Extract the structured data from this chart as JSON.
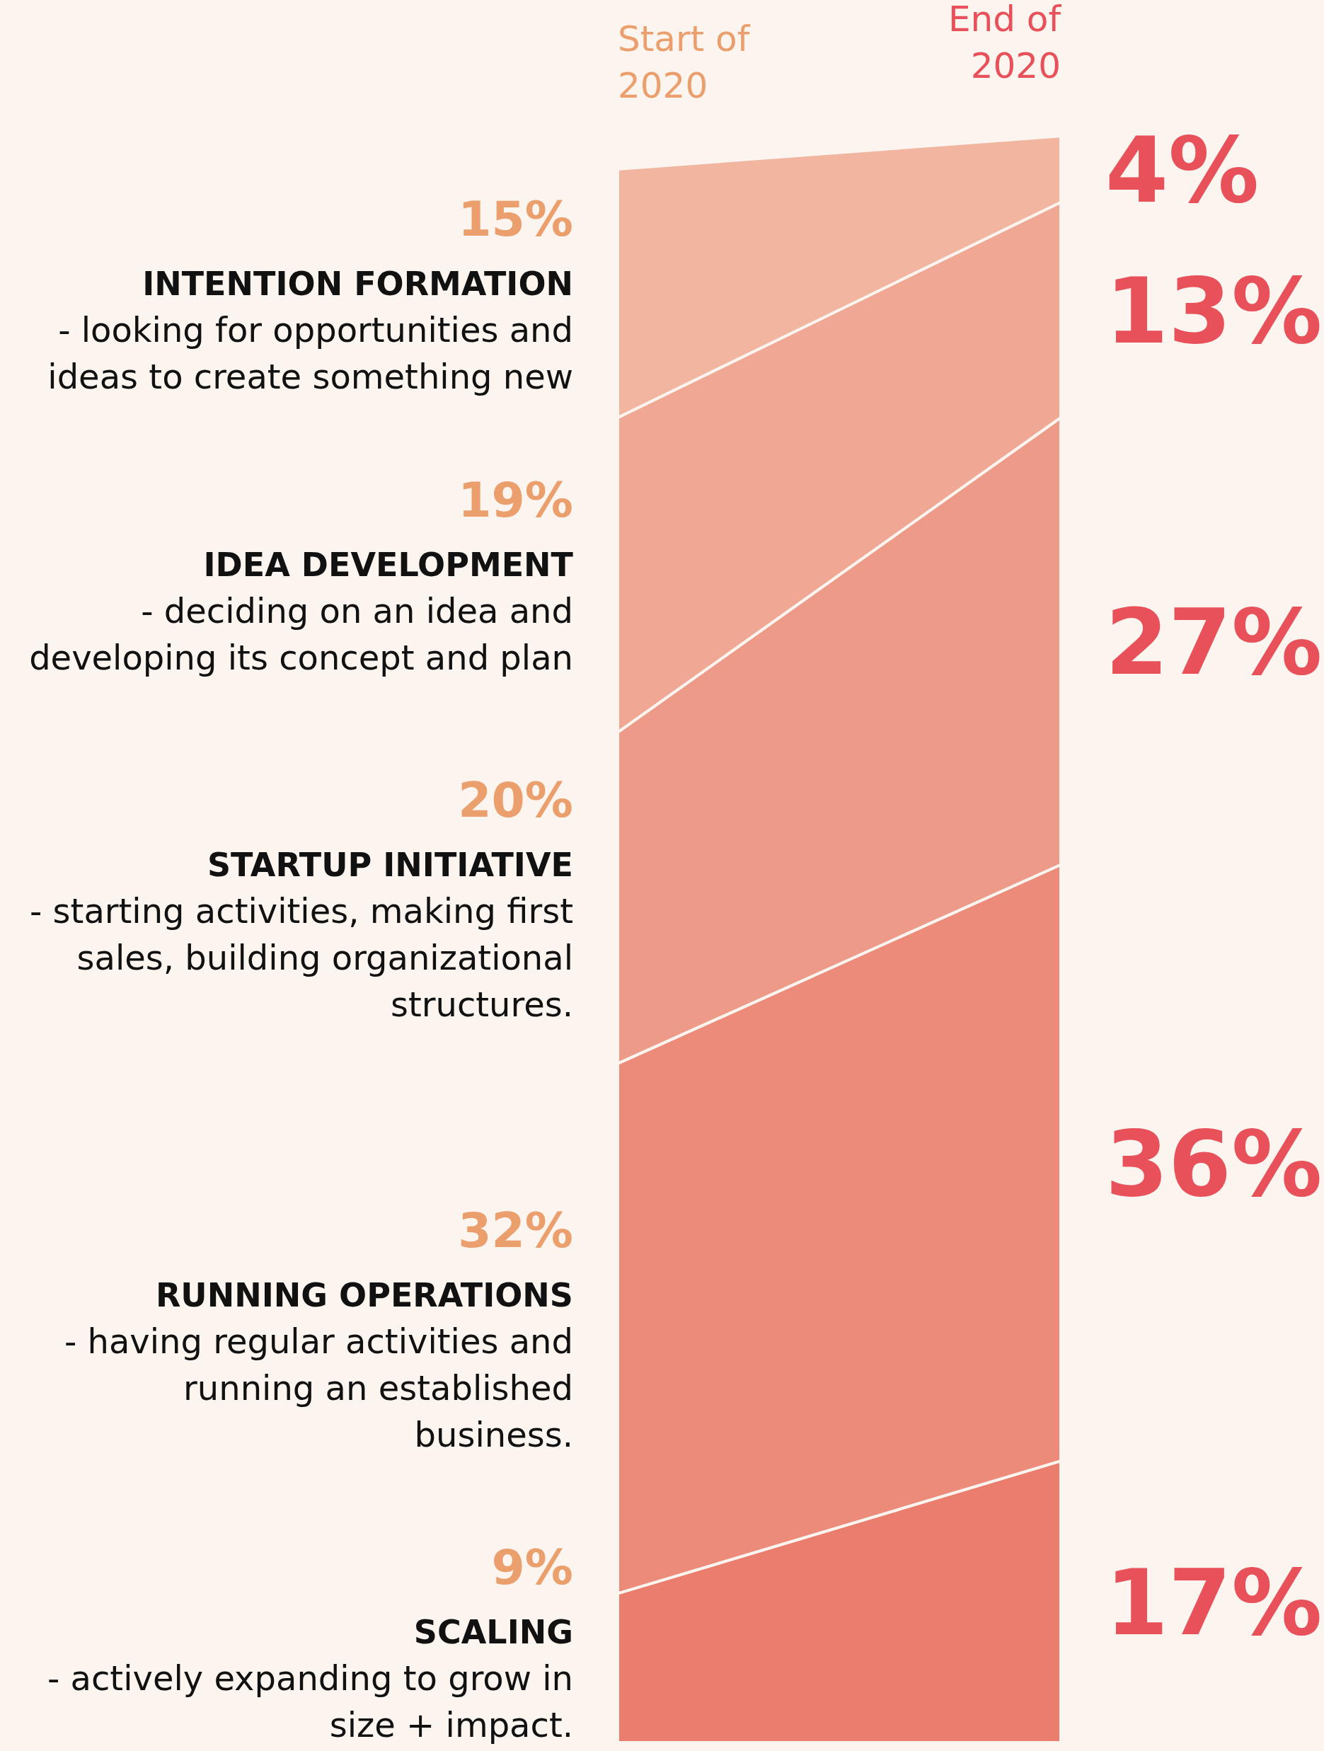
{
  "chart_data": {
    "type": "area",
    "stacked": true,
    "categories": [
      "Start of 2020",
      "End of 2020"
    ],
    "series": [
      {
        "name": "SCALING",
        "color": "#ea7d6e",
        "values": [
          9,
          17
        ],
        "value_labels": [
          "9%",
          "17%"
        ]
      },
      {
        "name": "RUNNING OPERATIONS",
        "color": "#ec8b7a",
        "values": [
          32,
          36
        ],
        "value_labels": [
          "32%",
          "36%"
        ]
      },
      {
        "name": "STARTUP INITIATIVE",
        "color": "#ee9a88",
        "values": [
          20,
          27
        ],
        "value_labels": [
          "20%",
          "27%"
        ]
      },
      {
        "name": "IDEA DEVELOPMENT",
        "color": "#f0a894",
        "values": [
          19,
          13
        ],
        "value_labels": [
          "19%",
          "13%"
        ]
      },
      {
        "name": "INTENTION FORMATION",
        "color": "#f2b5a0",
        "values": [
          15,
          4
        ],
        "value_labels": [
          "15%",
          "4%"
        ]
      }
    ],
    "annotations": [
      "- actively expanding to grow in size + impact.",
      "- having regular activities and running an established business.",
      "- starting activities, making first sales, building organizational structures.",
      "- deciding on an idea and developing its concept and plan",
      "- looking for opportunities and ideas to create something new"
    ]
  }
}
